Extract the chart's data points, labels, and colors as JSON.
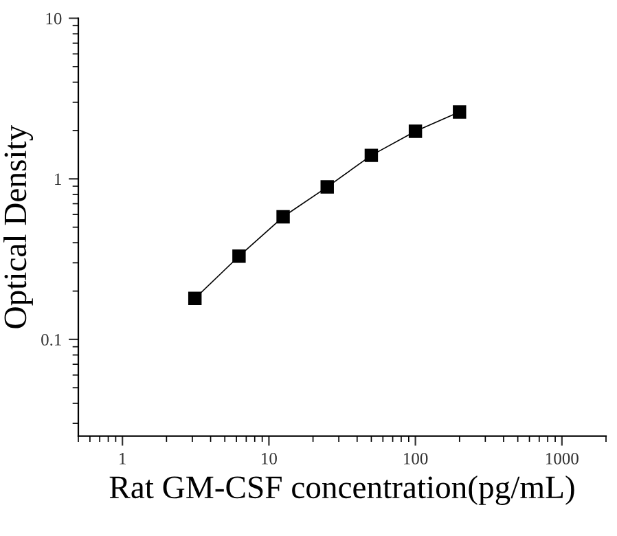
{
  "chart_data": {
    "type": "line",
    "xlabel": "Rat GM-CSF concentration(pg/mL)",
    "ylabel": "Optical Density",
    "log": "xy",
    "marker": "square",
    "line_style": "solid",
    "grid": false,
    "x": [
      3.125,
      6.25,
      12.5,
      25,
      50,
      100,
      200
    ],
    "series": [
      {
        "color": "#000000",
        "values": [
          0.18,
          0.33,
          0.58,
          0.89,
          1.4,
          1.98,
          2.61
        ]
      }
    ],
    "xlim": [
      0.5,
      2000
    ],
    "ylim": [
      0.025,
      10
    ],
    "xticks": [
      1,
      10,
      100,
      1000
    ],
    "yticks": [
      0.1,
      1,
      10
    ]
  }
}
